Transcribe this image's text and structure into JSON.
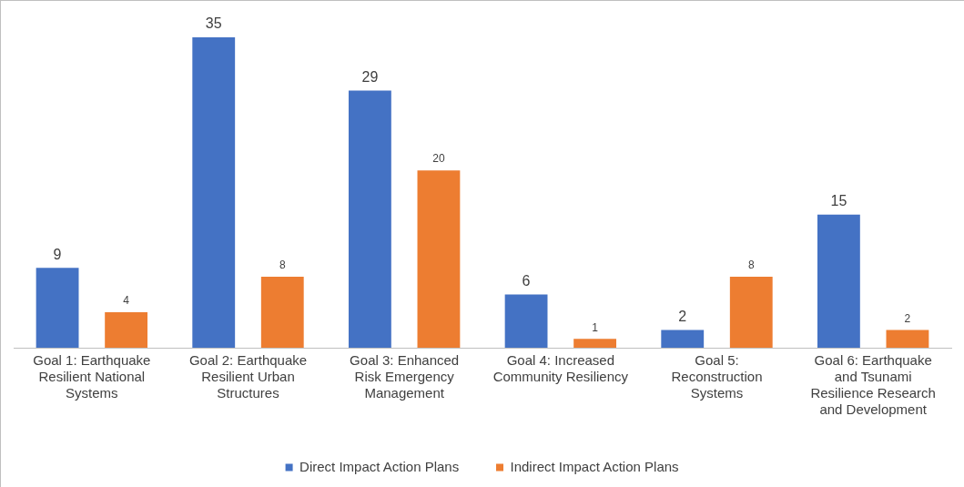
{
  "chart_data": {
    "type": "bar",
    "categories": [
      "Goal 1: Earthquake Resilient National Systems",
      "Goal 2: Earthquake Resilient Urban Structures",
      "Goal 3: Enhanced Risk Emergency Management",
      "Goal 4: Increased Community Resiliency",
      "Goal 5: Reconstruction Systems",
      "Goal 6: Earthquake and Tsunami Resilience Research and Development"
    ],
    "series": [
      {
        "name": "Direct Impact Action Plans",
        "color": "#4472c4",
        "values": [
          9,
          35,
          29,
          6,
          2,
          15
        ]
      },
      {
        "name": "Indirect Impact Action Plans",
        "color": "#ed7d31",
        "values": [
          4,
          8,
          20,
          1,
          8,
          2
        ]
      }
    ],
    "data_labels": true,
    "grid": false,
    "legend": "bottom"
  }
}
